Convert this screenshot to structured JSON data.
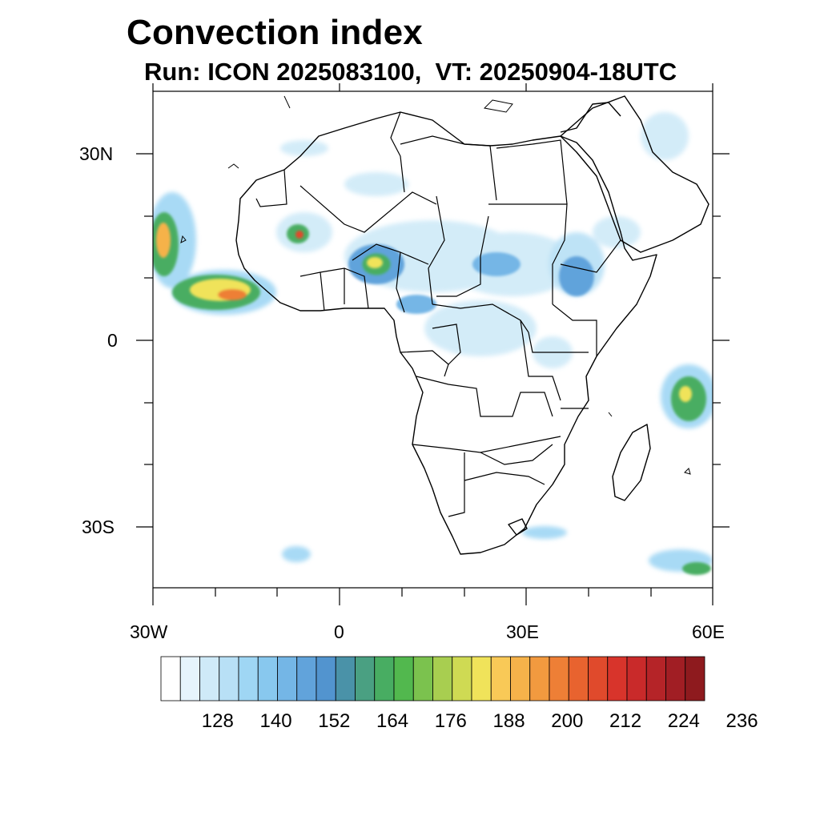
{
  "header": {
    "title": "Convection index",
    "subtitle": "Run: ICON 2025083100,  VT: 20250904-18UTC"
  },
  "map": {
    "region": "Africa",
    "variable": "Convection index",
    "lon_range": [
      -30,
      60
    ],
    "lat_range": [
      -40,
      40
    ],
    "lat_tick_labels": [
      "30N",
      "0",
      "30S"
    ],
    "lon_tick_labels": [
      "30W",
      "0",
      "30E",
      "60E"
    ],
    "land_outline_color": "#000000",
    "ocean_color": "#ffffff"
  },
  "colorbar": {
    "labels": [
      "128",
      "140",
      "152",
      "164",
      "176",
      "188",
      "200",
      "212",
      "224",
      "236"
    ],
    "colors": [
      "#ffffff",
      "#e6f4fc",
      "#cfeaf8",
      "#b8e0f6",
      "#9fd6f4",
      "#88c8ee",
      "#74b6e6",
      "#61a3db",
      "#5294cf",
      "#4a92a8",
      "#4aa082",
      "#48ad62",
      "#52b84e",
      "#7bc24e",
      "#a8ce50",
      "#cfda53",
      "#f0e35a",
      "#f9c957",
      "#f6b24a",
      "#f29a3f",
      "#ee7f36",
      "#e8632f",
      "#e04a2c",
      "#d8342b",
      "#c92a2a",
      "#b52428",
      "#a11e24",
      "#8e1a1e"
    ]
  }
}
